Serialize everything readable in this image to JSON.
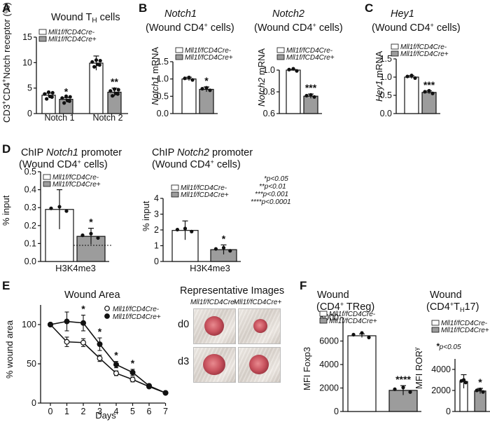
{
  "panel_letters": [
    "A",
    "B",
    "C",
    "D",
    "E",
    "F"
  ],
  "colors": {
    "white_bar": "#ffffff",
    "grey_bar": "#9c9c9c",
    "light_grey": "#bdbdbd",
    "black": "#111111"
  },
  "legend": {
    "cre_minus": "Mll1f/fCD4Cre-",
    "cre_plus": "Mll1f/fCD4Cre+",
    "a_base": "Mll1",
    "a_sup": "f/f",
    "a_mid": "CD4",
    "a_minus": "Cre-",
    "a_plus": "Cre+"
  },
  "significance_key": [
    "*p<0.05",
    "**p<0.01",
    "***p<0.001",
    "****p<0.0001"
  ],
  "chart_data": [
    {
      "id": "A",
      "type": "bar",
      "title": "Wound TH cells",
      "ylabel": "CD3+CD4+Notch receptor (%)",
      "categories": [
        "Notch 1",
        "Notch 2"
      ],
      "ylim": [
        0,
        15
      ],
      "yticks": [
        0,
        5,
        10,
        15
      ],
      "series": [
        {
          "name": "Mll1f/fCD4Cre-",
          "values": [
            3.6,
            9.9
          ],
          "errors": [
            0.4,
            1.4
          ]
        },
        {
          "name": "Mll1f/fCD4Cre+",
          "values": [
            2.8,
            4.2
          ],
          "errors": [
            0.3,
            0.8
          ]
        }
      ],
      "annotations": [
        "*",
        "**"
      ]
    },
    {
      "id": "B1",
      "type": "bar",
      "title": "Notch1 (Wound CD4+ cells)",
      "ylabel": "Notch1 mRNA",
      "ylim": [
        0,
        1.5
      ],
      "yticks": [
        0.0,
        0.5,
        1.0,
        1.5
      ],
      "series": [
        {
          "name": "Mll1f/fCD4Cre-",
          "values": [
            1.0
          ],
          "errors": [
            0.05
          ]
        },
        {
          "name": "Mll1f/fCD4Cre+",
          "values": [
            0.7
          ],
          "errors": [
            0.07
          ]
        }
      ],
      "annotations": [
        "*"
      ]
    },
    {
      "id": "B2",
      "type": "bar",
      "title": "Notch2 (Wound CD4+ cells)",
      "ylabel": "Notch2 mRNA",
      "ylim": [
        0.6,
        1.0
      ],
      "yticks": [
        0.6,
        0.8,
        1.0
      ],
      "series": [
        {
          "name": "Mll1f/fCD4Cre-",
          "values": [
            1.0
          ],
          "errors": [
            0.005
          ]
        },
        {
          "name": "Mll1f/fCD4Cre+",
          "values": [
            0.76
          ],
          "errors": [
            0.02
          ]
        }
      ],
      "annotations": [
        "***"
      ]
    },
    {
      "id": "C",
      "type": "bar",
      "title": "Hey1 (Wound CD4+ cells)",
      "ylabel": "Hey1 mRNA",
      "ylim": [
        0,
        1.5
      ],
      "yticks": [
        0.0,
        0.5,
        1.0,
        1.5
      ],
      "series": [
        {
          "name": "Mll1f/fCD4Cre-",
          "values": [
            1.0
          ],
          "errors": [
            0.04
          ]
        },
        {
          "name": "Mll1f/fCD4Cre+",
          "values": [
            0.58
          ],
          "errors": [
            0.04
          ]
        }
      ],
      "annotations": [
        "***"
      ]
    },
    {
      "id": "D1",
      "type": "bar",
      "title": "ChIP Notch1 promoter (Wound CD4+ cells)",
      "ylabel": "% input",
      "categories": [
        "H3K4me3"
      ],
      "ylim": [
        0.0,
        0.5
      ],
      "yticks": [
        0.0,
        0.1,
        0.2,
        0.3,
        0.4,
        0.5
      ],
      "baseline": 0.09,
      "series": [
        {
          "name": "Mll1f/fCD4Cre-",
          "values": [
            0.29
          ],
          "errors": [
            0.11
          ]
        },
        {
          "name": "Mll1f/fCD4Cre+",
          "values": [
            0.14
          ],
          "errors": [
            0.045
          ]
        }
      ],
      "annotations": [
        "*"
      ]
    },
    {
      "id": "D2",
      "type": "bar",
      "title": "ChIP Notch2 promoter (Wound CD4+ cells)",
      "ylabel": "% input",
      "categories": [
        "H3K4me3"
      ],
      "ylim": [
        0,
        4
      ],
      "yticks": [
        0,
        1,
        2,
        3,
        4
      ],
      "series": [
        {
          "name": "Mll1f/fCD4Cre-",
          "values": [
            1.97
          ],
          "errors": [
            0.6
          ]
        },
        {
          "name": "Mll1f/fCD4Cre+",
          "values": [
            0.75
          ],
          "errors": [
            0.3
          ]
        }
      ],
      "annotations": [
        "*"
      ]
    },
    {
      "id": "E",
      "type": "line",
      "title": "Wound Area",
      "xlabel": "Days",
      "ylabel": "% wound area",
      "x": [
        0,
        1,
        2,
        3,
        4,
        5,
        6,
        7
      ],
      "xlim": [
        0,
        7
      ],
      "ylim": [
        0,
        125
      ],
      "yticks": [
        0,
        50,
        100
      ],
      "series": [
        {
          "name": "Mll1f/fCD4Cre-",
          "marker": "open",
          "values": [
            100,
            78,
            77,
            57,
            38,
            30,
            21,
            13
          ],
          "errors": [
            0,
            6,
            5,
            4,
            3,
            3,
            2,
            1
          ]
        },
        {
          "name": "Mll1f/fCD4Cre+",
          "marker": "filled",
          "values": [
            100,
            104,
            102,
            75,
            49,
            39,
            22,
            13
          ],
          "errors": [
            0,
            12,
            10,
            8,
            4,
            4,
            2,
            1
          ]
        }
      ],
      "annotations": [
        {
          "x": 2,
          "text": "*"
        },
        {
          "x": 3,
          "text": "*"
        },
        {
          "x": 4,
          "text": "*"
        },
        {
          "x": 5,
          "text": "*"
        }
      ]
    },
    {
      "id": "F1",
      "type": "bar",
      "title": "Wound (CD4+ TReg)",
      "ylabel": "MFI Foxp3",
      "ylim": [
        0,
        8000
      ],
      "yticks": [
        0,
        2000,
        4000,
        6000,
        8000
      ],
      "series": [
        {
          "name": "Mll1f/fCD4Cre-",
          "values": [
            6450
          ],
          "errors": [
            150
          ]
        },
        {
          "name": "Mll1f/fCD4Cre+",
          "values": [
            1800
          ],
          "errors": [
            400
          ]
        }
      ],
      "annotations": [
        "****"
      ]
    },
    {
      "id": "F2",
      "type": "bar",
      "title": "Wound (CD4+TH17)",
      "ylabel": "MFI RORγ",
      "ylim": [
        0,
        5000
      ],
      "yticks": [
        0,
        2000,
        4000
      ],
      "series": [
        {
          "name": "Mll1f/fCD4Cre-",
          "values": [
            2850
          ],
          "errors": [
            650
          ]
        },
        {
          "name": "Mll1f/fCD4Cre+",
          "values": [
            1950
          ],
          "errors": [
            250
          ]
        }
      ],
      "annotations": [
        "*"
      ]
    }
  ],
  "text": {
    "A_title_pre": "Wound T",
    "A_title_sub": "H",
    "A_title_post": " cells",
    "A_ylabel": "CD3+CD4+Notch receptor (%)",
    "A_ylabel_a": "CD3",
    "A_ylabel_b": "CD4",
    "A_ylabel_c": "Notch receptor (%)",
    "A_cat1": "Notch 1",
    "A_cat2": "Notch 2",
    "B1_t1": "Notch1",
    "B1_t2": "(Wound CD4",
    "B1_t2b": " cells)",
    "B1_y": "Notch1",
    "B2_t1": "Notch2",
    "B2_t2": "(Wound CD4",
    "B2_t2b": " cells)",
    "B2_y": "Notch2",
    "mrna": " mRNA",
    "C_t1": "Hey1",
    "C_t2": "(Wound CD4",
    "C_t2b": " cells)",
    "C_y": "Hey1",
    "D1_t1a": "ChIP ",
    "D1_t1b": "Notch1",
    "D1_t1c": " promoter",
    "D1_t2": "(Wound CD4",
    "D1_t2b": " cells)",
    "D2_t1a": "ChIP ",
    "D2_t1b": "Notch2",
    "D2_t1c": " promoter",
    "D2_t2": "(Wound CD4",
    "D2_t2b": " cells)",
    "pct_input": "% input",
    "h3k4me3": "H3K4me3",
    "E_title": "Wound Area",
    "E_x": "Days",
    "E_y": "% wound area",
    "rep_title": "Representative Images",
    "rep_d0": "d0",
    "rep_d3": "d3",
    "F1_t1": "Wound",
    "F1_t2": "(CD4",
    "F1_t2b": " TReg)",
    "F1_y": "MFI Foxp3",
    "F2_t1": "Wound",
    "F2_t2": "(CD4",
    "F2_t2b": "T",
    "F2_t2c": "H",
    "F2_t2d": "17)",
    "F2_y": "MFI ROR",
    "F2_ysym": "γ",
    "F2_key": "p<0.05",
    "plus": "+"
  }
}
